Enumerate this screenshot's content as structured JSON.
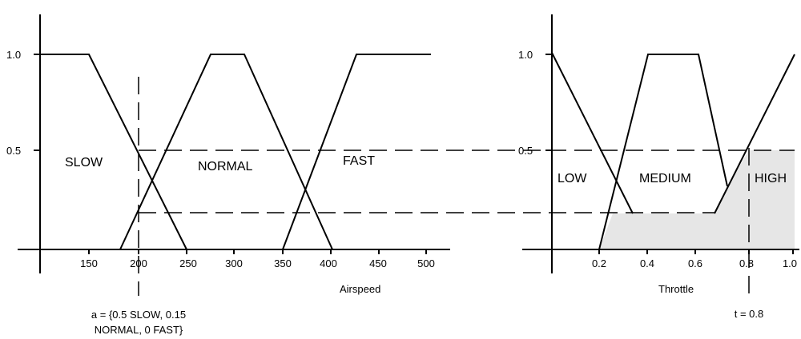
{
  "left_chart": {
    "y_ticks": [
      "1.0",
      "0.5"
    ],
    "x_ticks": [
      "150",
      "200",
      "250",
      "300",
      "350",
      "400",
      "450",
      "500"
    ],
    "x_label": "Airspeed",
    "sets": {
      "slow": "SLOW",
      "normal": "NORMAL",
      "fast": "FAST"
    },
    "annotation": [
      "a = {0.5 SLOW, 0.15",
      "NORMAL, 0 FAST}"
    ]
  },
  "right_chart": {
    "y_ticks": [
      "1.0",
      "0.5"
    ],
    "x_ticks": [
      "0.2",
      "0.4",
      "0.6",
      "0.8",
      "1.0"
    ],
    "x_label": "Throttle",
    "sets": {
      "low": "LOW",
      "medium": "MEDIUM",
      "high": "HIGH"
    },
    "annotation": "t = 0.8"
  },
  "colors": {
    "line": "#000000",
    "shade": "#e6e6e6"
  }
}
